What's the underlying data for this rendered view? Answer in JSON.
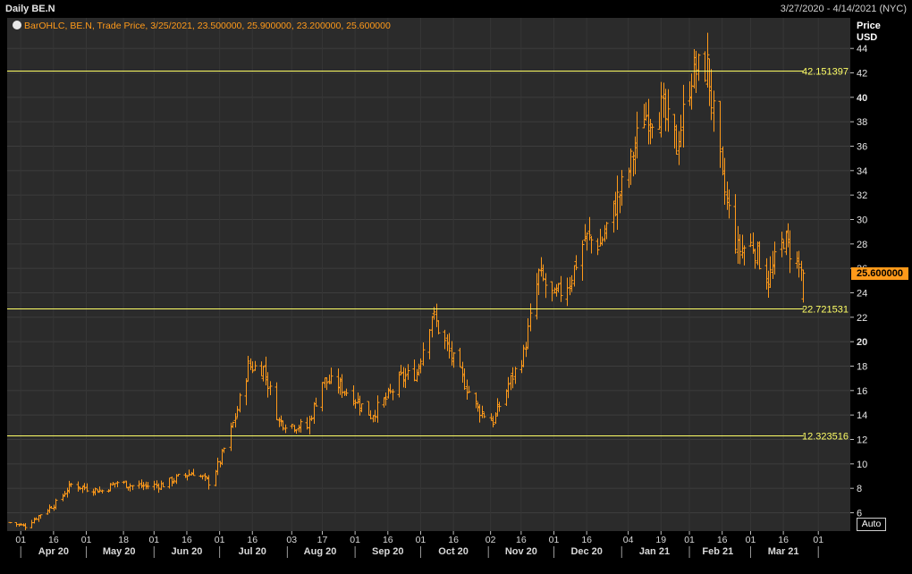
{
  "header": {
    "title": "Daily BE.N",
    "date_range": "3/27/2020 - 4/14/2021 (NYC)"
  },
  "legend": {
    "text": "BarOHLC, BE.N, Trade Price, 3/25/2021, 23.500000, 25.900000, 23.200000, 25.600000",
    "icon": "circle-icon"
  },
  "y_axis": {
    "label_line1": "Price",
    "label_line2": "USD",
    "last_price_label": "25.600000",
    "auto_button": "Auto"
  },
  "colors": {
    "background": "#2b2b2b",
    "bars": "#ff9a1a",
    "horizontal_lines": "#ffff66",
    "grid": "#3f3f3f"
  },
  "chart_data": {
    "type": "ohlc",
    "title": "Daily BE.N",
    "xlabel": "",
    "ylabel": "Price USD",
    "ylim": [
      4.5,
      46.5
    ],
    "y_ticks": [
      6,
      8,
      10,
      12,
      14,
      16,
      18,
      20,
      22,
      24,
      26,
      28,
      30,
      32,
      34,
      36,
      38,
      40,
      42,
      44
    ],
    "y_bold_ticks": [
      20,
      40
    ],
    "x_range": [
      "2020-03-27",
      "2021-04-14"
    ],
    "x_day_ticks": [
      {
        "label": "01",
        "date": "2020-04-01"
      },
      {
        "label": "16",
        "date": "2020-04-16"
      },
      {
        "label": "01",
        "date": "2020-05-01"
      },
      {
        "label": "18",
        "date": "2020-05-18"
      },
      {
        "label": "01",
        "date": "2020-06-01"
      },
      {
        "label": "16",
        "date": "2020-06-16"
      },
      {
        "label": "01",
        "date": "2020-07-01"
      },
      {
        "label": "16",
        "date": "2020-07-16"
      },
      {
        "label": "03",
        "date": "2020-08-03"
      },
      {
        "label": "17",
        "date": "2020-08-17"
      },
      {
        "label": "01",
        "date": "2020-09-01"
      },
      {
        "label": "16",
        "date": "2020-09-16"
      },
      {
        "label": "01",
        "date": "2020-10-01"
      },
      {
        "label": "16",
        "date": "2020-10-16"
      },
      {
        "label": "02",
        "date": "2020-11-02"
      },
      {
        "label": "16",
        "date": "2020-11-16"
      },
      {
        "label": "01",
        "date": "2020-12-01"
      },
      {
        "label": "16",
        "date": "2020-12-16"
      },
      {
        "label": "04",
        "date": "2021-01-04"
      },
      {
        "label": "19",
        "date": "2021-01-19"
      },
      {
        "label": "01",
        "date": "2021-02-01"
      },
      {
        "label": "16",
        "date": "2021-02-16"
      },
      {
        "label": "01",
        "date": "2021-03-01"
      },
      {
        "label": "16",
        "date": "2021-03-16"
      },
      {
        "label": "01",
        "date": "2021-04-01"
      }
    ],
    "x_month_labels": [
      {
        "label": "Apr 20",
        "date": "2020-04-16"
      },
      {
        "label": "May 20",
        "date": "2020-05-16"
      },
      {
        "label": "Jun 20",
        "date": "2020-06-16"
      },
      {
        "label": "Jul 20",
        "date": "2020-07-16"
      },
      {
        "label": "Aug 20",
        "date": "2020-08-16"
      },
      {
        "label": "Sep 20",
        "date": "2020-09-16"
      },
      {
        "label": "Oct 20",
        "date": "2020-10-16"
      },
      {
        "label": "Nov 20",
        "date": "2020-11-16"
      },
      {
        "label": "Dec 20",
        "date": "2020-12-16"
      },
      {
        "label": "Jan 21",
        "date": "2021-01-16"
      },
      {
        "label": "Feb 21",
        "date": "2021-02-14"
      },
      {
        "label": "Mar 21",
        "date": "2021-03-16"
      }
    ],
    "horizontal_lines": [
      {
        "value": 42.151397,
        "label": "42.151397"
      },
      {
        "value": 22.721531,
        "label": "22.721531"
      },
      {
        "value": 12.323516,
        "label": "12.323516"
      }
    ],
    "price_path": [
      {
        "date": "2020-03-27",
        "close": 5.2
      },
      {
        "date": "2020-04-03",
        "close": 4.9
      },
      {
        "date": "2020-04-10",
        "close": 5.9
      },
      {
        "date": "2020-04-17",
        "close": 6.8
      },
      {
        "date": "2020-04-24",
        "close": 8.3
      },
      {
        "date": "2020-05-01",
        "close": 8.0
      },
      {
        "date": "2020-05-08",
        "close": 7.8
      },
      {
        "date": "2020-05-15",
        "close": 8.5
      },
      {
        "date": "2020-05-22",
        "close": 8.2
      },
      {
        "date": "2020-05-29",
        "close": 8.2
      },
      {
        "date": "2020-06-05",
        "close": 8.3
      },
      {
        "date": "2020-06-12",
        "close": 8.9
      },
      {
        "date": "2020-06-19",
        "close": 9.3
      },
      {
        "date": "2020-06-26",
        "close": 8.5
      },
      {
        "date": "2020-07-01",
        "close": 10.2
      },
      {
        "date": "2020-07-08",
        "close": 13.8
      },
      {
        "date": "2020-07-14",
        "close": 18.0
      },
      {
        "date": "2020-07-21",
        "close": 17.8
      },
      {
        "date": "2020-07-28",
        "close": 13.5
      },
      {
        "date": "2020-08-03",
        "close": 13.2
      },
      {
        "date": "2020-08-10",
        "close": 13.0
      },
      {
        "date": "2020-08-17",
        "close": 16.8
      },
      {
        "date": "2020-08-24",
        "close": 16.5
      },
      {
        "date": "2020-08-31",
        "close": 15.5
      },
      {
        "date": "2020-09-08",
        "close": 14.0
      },
      {
        "date": "2020-09-15",
        "close": 15.3
      },
      {
        "date": "2020-09-22",
        "close": 17.0
      },
      {
        "date": "2020-09-29",
        "close": 17.5
      },
      {
        "date": "2020-10-06",
        "close": 22.3
      },
      {
        "date": "2020-10-13",
        "close": 19.5
      },
      {
        "date": "2020-10-20",
        "close": 17.0
      },
      {
        "date": "2020-10-27",
        "close": 14.5
      },
      {
        "date": "2020-11-03",
        "close": 13.5
      },
      {
        "date": "2020-11-10",
        "close": 16.5
      },
      {
        "date": "2020-11-17",
        "close": 19.0
      },
      {
        "date": "2020-11-24",
        "close": 25.5
      },
      {
        "date": "2020-12-01",
        "close": 23.5
      },
      {
        "date": "2020-12-08",
        "close": 25.0
      },
      {
        "date": "2020-12-15",
        "close": 28.5
      },
      {
        "date": "2020-12-22",
        "close": 28.0
      },
      {
        "date": "2021-01-04",
        "close": 34.0
      },
      {
        "date": "2021-01-11",
        "close": 38.5
      },
      {
        "date": "2021-01-19",
        "close": 39.0
      },
      {
        "date": "2021-01-26",
        "close": 36.0
      },
      {
        "date": "2021-02-02",
        "close": 42.0
      },
      {
        "date": "2021-02-09",
        "close": 42.5
      },
      {
        "date": "2021-02-16",
        "close": 33.0
      },
      {
        "date": "2021-02-23",
        "close": 27.5
      },
      {
        "date": "2021-03-02",
        "close": 28.0
      },
      {
        "date": "2021-03-09",
        "close": 25.0
      },
      {
        "date": "2021-03-16",
        "close": 28.5
      },
      {
        "date": "2021-03-22",
        "close": 26.5
      },
      {
        "date": "2021-03-25",
        "close": 25.6
      }
    ],
    "last_bar": {
      "date": "2021-03-25",
      "open": 23.5,
      "high": 25.9,
      "low": 23.2,
      "close": 25.6
    }
  }
}
